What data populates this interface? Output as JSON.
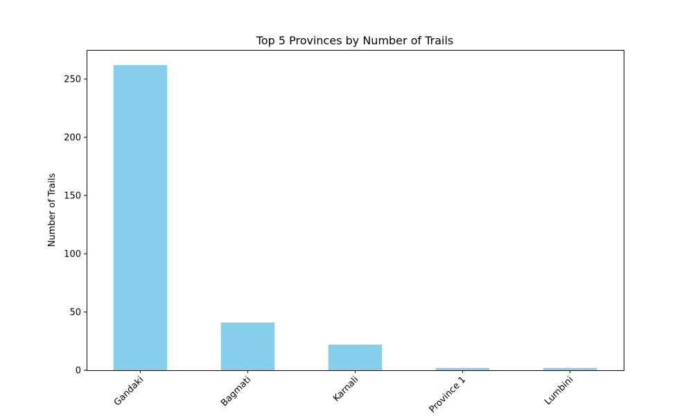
{
  "chart_data": {
    "type": "bar",
    "title": "Top 5 Provinces by Number of Trails",
    "xlabel": "",
    "ylabel": "Number of Trails",
    "categories": [
      "Gandaki",
      "Bagmati",
      "Karnali",
      "Province 1",
      "Lumbini"
    ],
    "values": [
      262,
      41,
      22,
      2,
      2
    ],
    "ylim": [
      0,
      275
    ],
    "yticks": [
      0,
      50,
      100,
      150,
      200,
      250
    ],
    "bar_color": "#87ceeb",
    "grid": false,
    "legend": "none"
  }
}
